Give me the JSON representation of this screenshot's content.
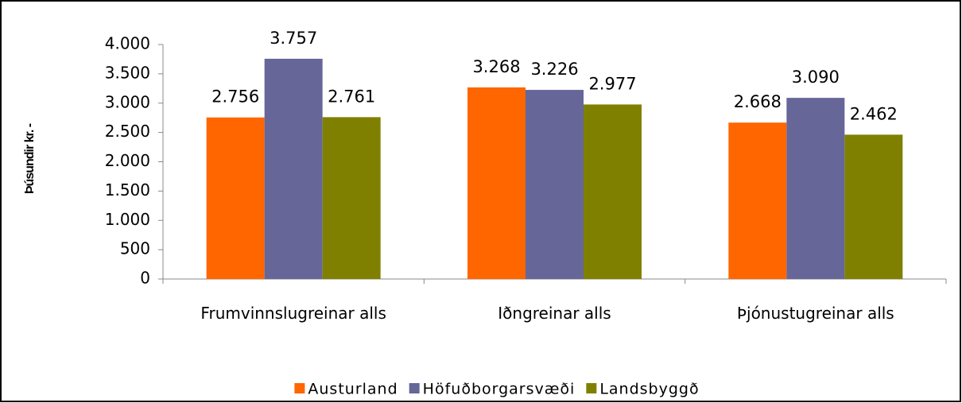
{
  "chart_data": {
    "type": "bar",
    "y_label": "Þúsundir kr. -",
    "categories": [
      "Frumvinnslugreinar alls",
      "Iðngreinar alls",
      "Þjónustugreinar alls"
    ],
    "series": [
      {
        "name": "Austurland",
        "color": "#ff6600",
        "values": [
          2756,
          3268,
          2668
        ],
        "value_labels": [
          "2.756",
          "3.268",
          "2.668"
        ]
      },
      {
        "name": "Höfuðborgarsvæði",
        "color": "#666699",
        "values": [
          3757,
          3226,
          3090
        ],
        "value_labels": [
          "3.757",
          "3.226",
          "3.090"
        ]
      },
      {
        "name": "Landsbyggð",
        "color": "#808000",
        "values": [
          2761,
          2977,
          2462
        ],
        "value_labels": [
          "2.761",
          "2.977",
          "2.462"
        ]
      }
    ],
    "ylim": [
      0,
      4000
    ],
    "yticks": [
      0,
      500,
      {
        "value": 1000,
        "label": "1.000"
      },
      {
        "value": 1500,
        "label": "1.500"
      },
      {
        "value": 2000,
        "label": "2.000"
      },
      {
        "value": 2500,
        "label": "2.500"
      },
      {
        "value": 3000,
        "label": "3.000"
      },
      {
        "value": 3500,
        "label": "3.500"
      },
      {
        "value": 4000,
        "label": "4.000"
      }
    ],
    "grid": false,
    "legend": "bottom"
  }
}
